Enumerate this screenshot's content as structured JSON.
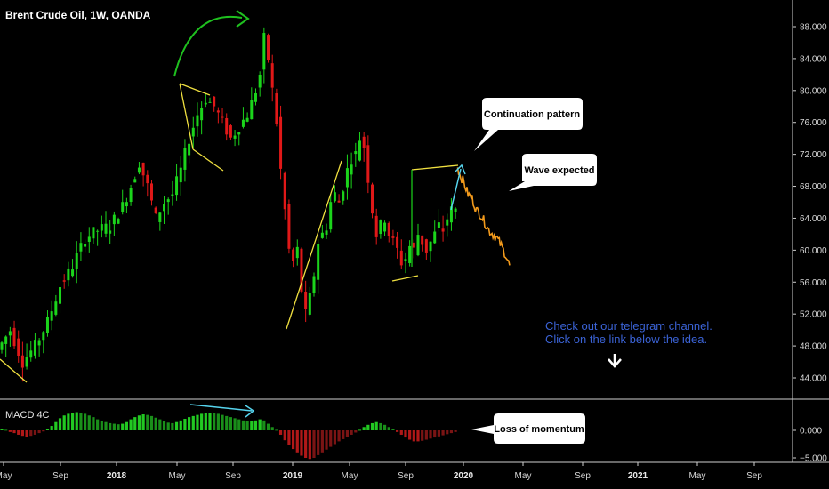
{
  "chart_data": {
    "type": "candlestick",
    "title": "Brent Crude Oil, 1W, OANDA",
    "price_axis": {
      "ticks": [
        "88.000",
        "84.000",
        "80.000",
        "76.000",
        "72.000",
        "68.000",
        "64.000",
        "60.000",
        "56.000",
        "52.000",
        "48.000",
        "44.000"
      ],
      "range": [
        41.5,
        90.5
      ]
    },
    "time_axis": {
      "labels": [
        {
          "text": "May",
          "bold": false
        },
        {
          "text": "Sep",
          "bold": false
        },
        {
          "text": "2018",
          "bold": true
        },
        {
          "text": "May",
          "bold": false
        },
        {
          "text": "Sep",
          "bold": false
        },
        {
          "text": "2019",
          "bold": true
        },
        {
          "text": "May",
          "bold": false
        },
        {
          "text": "Sep",
          "bold": false
        },
        {
          "text": "2020",
          "bold": true
        },
        {
          "text": "May",
          "bold": false
        },
        {
          "text": "Sep",
          "bold": false
        },
        {
          "text": "2021",
          "bold": true
        },
        {
          "text": "May",
          "bold": false
        },
        {
          "text": "Sep",
          "bold": false
        }
      ]
    },
    "price_path": [
      [
        0,
        47.5
      ],
      [
        3,
        50
      ],
      [
        6,
        46
      ],
      [
        9,
        48
      ],
      [
        12,
        51
      ],
      [
        15,
        55.5
      ],
      [
        18,
        58
      ],
      [
        21,
        61.5
      ],
      [
        24,
        62.5
      ],
      [
        27,
        63
      ],
      [
        30,
        65.5
      ],
      [
        32,
        68
      ],
      [
        34,
        71
      ],
      [
        36,
        68
      ],
      [
        38,
        64
      ],
      [
        40,
        66
      ],
      [
        42,
        67
      ],
      [
        44,
        70
      ],
      [
        46,
        74
      ],
      [
        48,
        77
      ],
      [
        50,
        79
      ],
      [
        52,
        78
      ],
      [
        54,
        76
      ],
      [
        56,
        74
      ],
      [
        58,
        75.5
      ],
      [
        60,
        77
      ],
      [
        62,
        80
      ],
      [
        63,
        82
      ],
      [
        64,
        86.5
      ],
      [
        65,
        84
      ],
      [
        66,
        80
      ],
      [
        67,
        76
      ],
      [
        68,
        70
      ],
      [
        69,
        65
      ],
      [
        70,
        60
      ],
      [
        71,
        58.5
      ],
      [
        72,
        60
      ],
      [
        73,
        55
      ],
      [
        74,
        52
      ],
      [
        75,
        54
      ],
      [
        76,
        57
      ],
      [
        77,
        61
      ],
      [
        78,
        62
      ],
      [
        79,
        63
      ],
      [
        80,
        66
      ],
      [
        81,
        67
      ],
      [
        82,
        66
      ],
      [
        83,
        68
      ],
      [
        84,
        70
      ],
      [
        85,
        71.5
      ],
      [
        86,
        72
      ],
      [
        87,
        74
      ],
      [
        88,
        73
      ],
      [
        89,
        69
      ],
      [
        90,
        65
      ],
      [
        91,
        62
      ],
      [
        92,
        63
      ],
      [
        93,
        64
      ],
      [
        94,
        62
      ],
      [
        95,
        61
      ],
      [
        96,
        60
      ],
      [
        97,
        58.5
      ],
      [
        98,
        59
      ],
      [
        99,
        60.5
      ],
      [
        100,
        60
      ],
      [
        101,
        62
      ],
      [
        102,
        61
      ],
      [
        103,
        60
      ],
      [
        104,
        61
      ],
      [
        105,
        62
      ],
      [
        106,
        63
      ],
      [
        107,
        62.5
      ],
      [
        108,
        64
      ],
      [
        109,
        65
      ]
    ],
    "forecast_path": [
      [
        109.5,
        70.5
      ],
      [
        110,
        69.5
      ],
      [
        111,
        68.5
      ],
      [
        112,
        67
      ],
      [
        113,
        66.5
      ],
      [
        114,
        65
      ],
      [
        115,
        64.5
      ],
      [
        116,
        63.5
      ],
      [
        117,
        62.5
      ],
      [
        118,
        62
      ],
      [
        119,
        61.5
      ],
      [
        120,
        60.5
      ],
      [
        121,
        59.5
      ],
      [
        122,
        58
      ]
    ],
    "macd": {
      "label": "MACD 4C",
      "ticks": [
        "0.000",
        "−5.000"
      ],
      "range": [
        -6,
        5
      ],
      "histogram": [
        [
          0,
          0.2
        ],
        [
          1,
          0.1
        ],
        [
          2,
          -0.3
        ],
        [
          3,
          -0.5
        ],
        [
          4,
          -0.8
        ],
        [
          5,
          -1.0
        ],
        [
          6,
          -1.2
        ],
        [
          7,
          -1.0
        ],
        [
          8,
          -0.8
        ],
        [
          9,
          -0.5
        ],
        [
          10,
          -0.2
        ],
        [
          11,
          0.3
        ],
        [
          12,
          0.8
        ],
        [
          13,
          1.5
        ],
        [
          14,
          2.2
        ],
        [
          15,
          2.7
        ],
        [
          16,
          3.0
        ],
        [
          17,
          3.2
        ],
        [
          18,
          3.3
        ],
        [
          19,
          3.2
        ],
        [
          20,
          3.0
        ],
        [
          21,
          2.7
        ],
        [
          22,
          2.4
        ],
        [
          23,
          2.0
        ],
        [
          24,
          1.7
        ],
        [
          25,
          1.5
        ],
        [
          26,
          1.3
        ],
        [
          27,
          1.2
        ],
        [
          28,
          1.1
        ],
        [
          29,
          1.2
        ],
        [
          30,
          1.5
        ],
        [
          31,
          2.0
        ],
        [
          32,
          2.4
        ],
        [
          33,
          2.7
        ],
        [
          34,
          2.9
        ],
        [
          35,
          2.8
        ],
        [
          36,
          2.6
        ],
        [
          37,
          2.3
        ],
        [
          38,
          2.0
        ],
        [
          39,
          1.7
        ],
        [
          40,
          1.4
        ],
        [
          41,
          1.3
        ],
        [
          42,
          1.5
        ],
        [
          43,
          1.8
        ],
        [
          44,
          2.1
        ],
        [
          45,
          2.4
        ],
        [
          46,
          2.6
        ],
        [
          47,
          2.8
        ],
        [
          48,
          3.0
        ],
        [
          49,
          3.1
        ],
        [
          50,
          3.2
        ],
        [
          51,
          3.1
        ],
        [
          52,
          3.0
        ],
        [
          53,
          2.8
        ],
        [
          54,
          2.6
        ],
        [
          55,
          2.4
        ],
        [
          56,
          2.2
        ],
        [
          57,
          2.0
        ],
        [
          58,
          1.8
        ],
        [
          59,
          1.7
        ],
        [
          60,
          1.7
        ],
        [
          61,
          1.8
        ],
        [
          62,
          2.0
        ],
        [
          63,
          1.8
        ],
        [
          64,
          1.2
        ],
        [
          65,
          0.6
        ],
        [
          66,
          0.1
        ],
        [
          67,
          -0.8
        ],
        [
          68,
          -1.8
        ],
        [
          69,
          -2.6
        ],
        [
          70,
          -3.4
        ],
        [
          71,
          -4.0
        ],
        [
          72,
          -4.6
        ],
        [
          73,
          -5.0
        ],
        [
          74,
          -5.2
        ],
        [
          75,
          -5.0
        ],
        [
          76,
          -4.5
        ],
        [
          77,
          -4.0
        ],
        [
          78,
          -3.5
        ],
        [
          79,
          -3.0
        ],
        [
          80,
          -2.5
        ],
        [
          81,
          -2.0
        ],
        [
          82,
          -1.6
        ],
        [
          83,
          -1.2
        ],
        [
          84,
          -0.8
        ],
        [
          85,
          -0.4
        ],
        [
          86,
          0.1
        ],
        [
          87,
          0.6
        ],
        [
          88,
          1.0
        ],
        [
          89,
          1.3
        ],
        [
          90,
          1.5
        ],
        [
          91,
          1.3
        ],
        [
          92,
          1.0
        ],
        [
          93,
          0.6
        ],
        [
          94,
          0.2
        ],
        [
          95,
          -0.3
        ],
        [
          96,
          -0.8
        ],
        [
          97,
          -1.3
        ],
        [
          98,
          -1.7
        ],
        [
          99,
          -2.0
        ],
        [
          100,
          -2.0
        ],
        [
          101,
          -1.9
        ],
        [
          102,
          -1.7
        ],
        [
          103,
          -1.5
        ],
        [
          104,
          -1.3
        ],
        [
          105,
          -1.1
        ],
        [
          106,
          -0.9
        ],
        [
          107,
          -0.7
        ],
        [
          108,
          -0.5
        ],
        [
          109,
          -0.3
        ]
      ]
    },
    "annotations": {
      "callouts": [
        "Continuation pattern",
        "Wave expected",
        "Loss of momentum"
      ],
      "note": [
        "Check out our telegram channel.",
        "Click on the link below the idea."
      ]
    },
    "colors": {
      "up": "#1bd41b",
      "down": "#e01818",
      "forecast": "#f29a1c",
      "trendline": "#f0e040",
      "arc": "#1fc01f",
      "cyan_arrow": "#56d4ee",
      "note": "#3b63d6",
      "background": "#000000",
      "grid_separator": "#cccccc"
    }
  }
}
